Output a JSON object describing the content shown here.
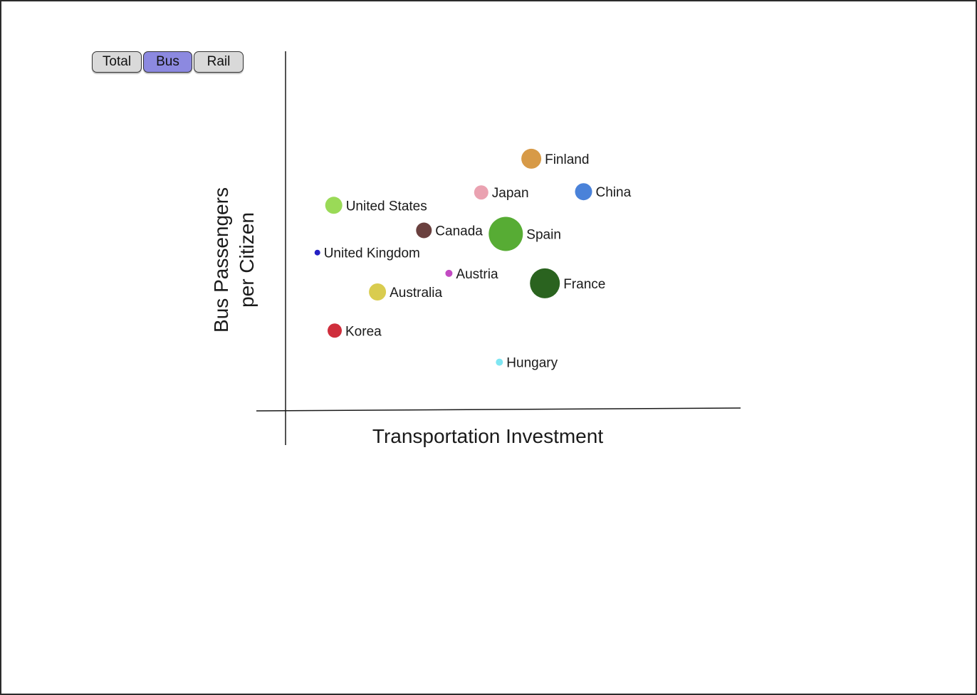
{
  "toggles": [
    {
      "label": "Total",
      "active": false
    },
    {
      "label": "Bus",
      "active": true
    },
    {
      "label": "Rail",
      "active": false
    }
  ],
  "chart_data": {
    "type": "scatter",
    "xlabel": "Transportation Investment",
    "ylabel_lines": [
      "Bus Passengers",
      "per Citizen"
    ],
    "xlim": [
      0,
      100
    ],
    "ylim": [
      0,
      100
    ],
    "grid": false,
    "points": [
      {
        "label": "Finland",
        "x": 54.0,
        "y": 70.0,
        "size": 14,
        "color": "#d79a47"
      },
      {
        "label": "China",
        "x": 65.5,
        "y": 60.8,
        "size": 12,
        "color": "#4a82d9"
      },
      {
        "label": "Japan",
        "x": 43.0,
        "y": 60.6,
        "size": 10,
        "color": "#eaa2b1"
      },
      {
        "label": "United States",
        "x": 10.6,
        "y": 57.0,
        "size": 12,
        "color": "#9ada57"
      },
      {
        "label": "Canada",
        "x": 30.4,
        "y": 50.0,
        "size": 11,
        "color": "#6a403e"
      },
      {
        "label": "Spain",
        "x": 48.4,
        "y": 49.0,
        "size": 24,
        "color": "#57ac34"
      },
      {
        "label": "United Kingdom",
        "x": 7.0,
        "y": 43.8,
        "size": 4,
        "color": "#2420c4"
      },
      {
        "label": "Austria",
        "x": 35.9,
        "y": 38.0,
        "size": 5,
        "color": "#c24ac2"
      },
      {
        "label": "France",
        "x": 57.0,
        "y": 35.2,
        "size": 21,
        "color": "#2a631f"
      },
      {
        "label": "Australia",
        "x": 20.2,
        "y": 32.8,
        "size": 12,
        "color": "#d9cc4f"
      },
      {
        "label": "Korea",
        "x": 10.8,
        "y": 22.0,
        "size": 10,
        "color": "#cf2e3c"
      },
      {
        "label": "Hungary",
        "x": 47.0,
        "y": 13.2,
        "size": 5,
        "color": "#7fe6f2"
      }
    ]
  }
}
